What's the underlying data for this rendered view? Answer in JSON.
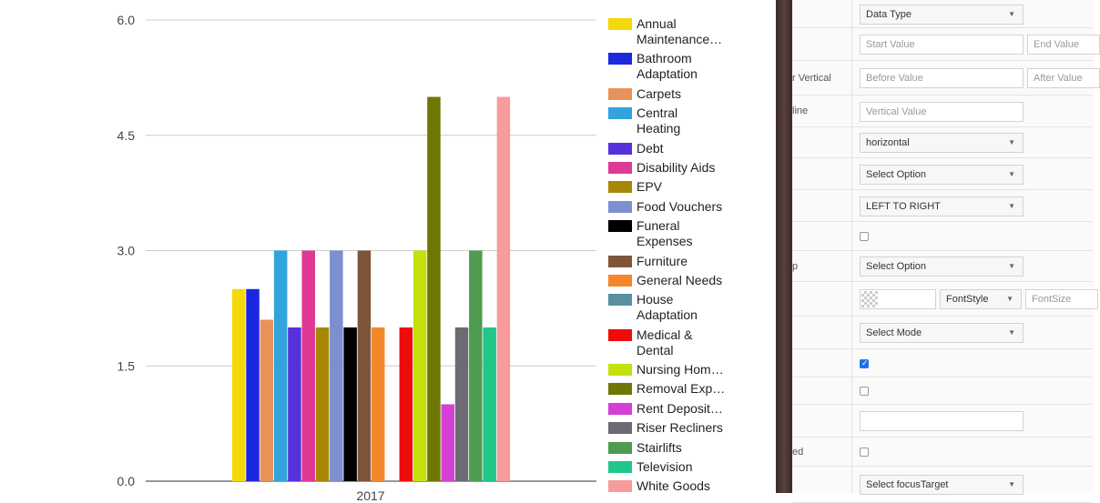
{
  "chart_data": {
    "type": "bar",
    "categories": [
      "2017"
    ],
    "ylim": [
      0,
      6
    ],
    "yticks": [
      "6.0",
      "4.5",
      "3.0",
      "1.5",
      "0.0"
    ],
    "ytick_values": [
      6,
      4.5,
      3,
      1.5,
      0
    ],
    "series": [
      {
        "name": "Annual Maintenance…",
        "color": "#f4d80a",
        "values": [
          2.5
        ]
      },
      {
        "name": "Bathroom Adaptation",
        "color": "#1c27e0",
        "values": [
          2.5
        ]
      },
      {
        "name": "Carpets",
        "color": "#e8925b",
        "values": [
          2.1
        ]
      },
      {
        "name": "Central Heating",
        "color": "#32a3dc",
        "values": [
          3
        ]
      },
      {
        "name": "Debt",
        "color": "#5531dc",
        "values": [
          2
        ]
      },
      {
        "name": "Disability Aids",
        "color": "#de3994",
        "values": [
          3
        ]
      },
      {
        "name": "EPV",
        "color": "#a88707",
        "values": [
          2
        ]
      },
      {
        "name": "Food Vouchers",
        "color": "#7b8fd1",
        "values": [
          3
        ]
      },
      {
        "name": "Funeral Expenses",
        "color": "#000000",
        "values": [
          2
        ]
      },
      {
        "name": "Furniture",
        "color": "#7f553a",
        "values": [
          3
        ]
      },
      {
        "name": "General Needs",
        "color": "#f5872b",
        "values": [
          2
        ]
      },
      {
        "name": "House Adaptation",
        "color": "#5a8ea2",
        "values": [
          null
        ]
      },
      {
        "name": "Medical & Dental",
        "color": "#f00b0b",
        "values": [
          2
        ]
      },
      {
        "name": "Nursing Hom…",
        "color": "#c4e10d",
        "values": [
          3
        ]
      },
      {
        "name": "Removal Exp…",
        "color": "#6e7704",
        "values": [
          5
        ]
      },
      {
        "name": "Rent Deposit…",
        "color": "#d43fd6",
        "values": [
          1
        ]
      },
      {
        "name": "Riser Recliners",
        "color": "#6c6b74",
        "values": [
          2
        ]
      },
      {
        "name": "Stairlifts",
        "color": "#4f9b50",
        "values": [
          3
        ]
      },
      {
        "name": "Television",
        "color": "#20c78b",
        "values": [
          2
        ]
      },
      {
        "name": "White Goods",
        "color": "#f79b9b",
        "values": [
          5
        ]
      }
    ]
  },
  "panel": {
    "rows": [
      {
        "label": "",
        "controls": [
          {
            "kind": "select",
            "text": "Data Type"
          }
        ]
      },
      {
        "label": "",
        "controls": [
          {
            "kind": "input",
            "text": "Start Value"
          },
          {
            "kind": "input",
            "text": "End Value"
          }
        ]
      },
      {
        "label": "r Vertical",
        "controls": [
          {
            "kind": "input",
            "text": "Before Value"
          },
          {
            "kind": "input",
            "text": "After Value"
          }
        ]
      },
      {
        "label": "line",
        "controls": [
          {
            "kind": "input",
            "text": "Vertical Value"
          }
        ]
      },
      {
        "label": "",
        "controls": [
          {
            "kind": "select",
            "text": "horizontal"
          }
        ]
      },
      {
        "label": "",
        "controls": [
          {
            "kind": "select",
            "text": "Select Option"
          }
        ]
      },
      {
        "label": "",
        "controls": [
          {
            "kind": "select",
            "text": "LEFT TO RIGHT"
          }
        ]
      },
      {
        "label": "",
        "controls": [
          {
            "kind": "checkbox",
            "checked": false
          }
        ]
      },
      {
        "label": "p",
        "controls": [
          {
            "kind": "select",
            "text": "Select Option"
          }
        ]
      },
      {
        "label": "",
        "controls": [
          {
            "kind": "color"
          },
          {
            "kind": "select",
            "text": "FontStyle"
          },
          {
            "kind": "input",
            "text": "FontSize"
          }
        ]
      },
      {
        "label": "",
        "controls": [
          {
            "kind": "select",
            "text": "Select Mode"
          }
        ]
      },
      {
        "label": "",
        "controls": [
          {
            "kind": "checkbox",
            "checked": true
          }
        ]
      },
      {
        "label": "",
        "controls": [
          {
            "kind": "checkbox",
            "checked": false
          }
        ]
      },
      {
        "label": "",
        "controls": [
          {
            "kind": "input",
            "text": ""
          }
        ]
      },
      {
        "label": "ed",
        "controls": [
          {
            "kind": "checkbox",
            "checked": false
          }
        ]
      },
      {
        "label": "",
        "controls": [
          {
            "kind": "select",
            "text": "Select focusTarget"
          }
        ]
      }
    ]
  }
}
